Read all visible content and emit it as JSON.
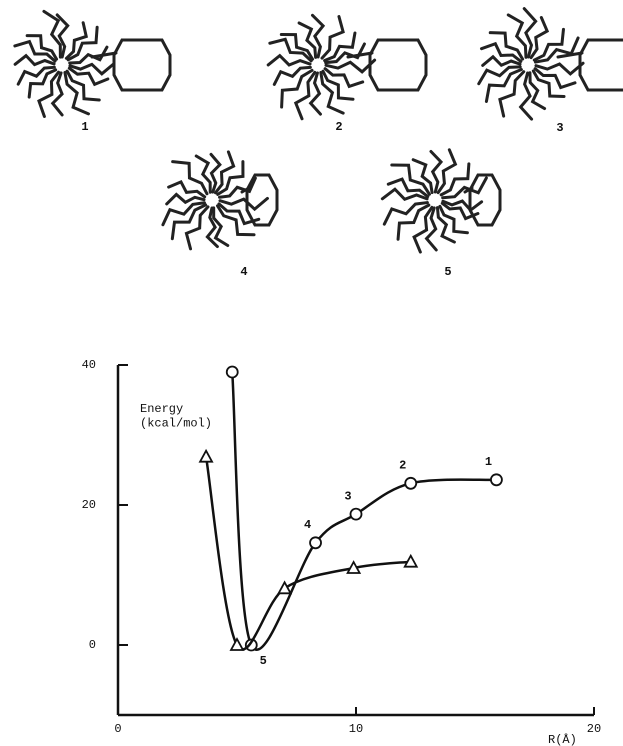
{
  "structures": [
    {
      "label": "1"
    },
    {
      "label": "2"
    },
    {
      "label": "3"
    },
    {
      "label": "4"
    },
    {
      "label": "5"
    }
  ],
  "chart_data": {
    "type": "line",
    "ylabel": "Energy\n(kcal/mol)",
    "xlabel": "R(Å)",
    "xlim": [
      0,
      20
    ],
    "ylim": [
      -10,
      40
    ],
    "xticks": [
      0,
      10,
      20
    ],
    "yticks": [
      0,
      20,
      40
    ],
    "series": [
      {
        "marker": "circle",
        "color": "#111",
        "x": [
          4.8,
          5.6,
          8.3,
          10.0,
          12.3,
          15.9
        ],
        "values": [
          39,
          0,
          14.6,
          18.7,
          23.1,
          23.6
        ]
      },
      {
        "marker": "triangle",
        "color": "#111",
        "x": [
          3.7,
          5.0,
          7.0,
          9.9,
          12.3
        ],
        "values": [
          26.9,
          0,
          8.1,
          11.0,
          11.9
        ]
      }
    ],
    "annotations": [
      {
        "text": "5",
        "x": 5.6,
        "y": 0
      },
      {
        "text": "4",
        "x": 8.3,
        "y": 14.6
      },
      {
        "text": "3",
        "x": 10.0,
        "y": 18.7
      },
      {
        "text": "2",
        "x": 12.3,
        "y": 23.1
      },
      {
        "text": "1",
        "x": 15.9,
        "y": 23.6
      }
    ]
  }
}
